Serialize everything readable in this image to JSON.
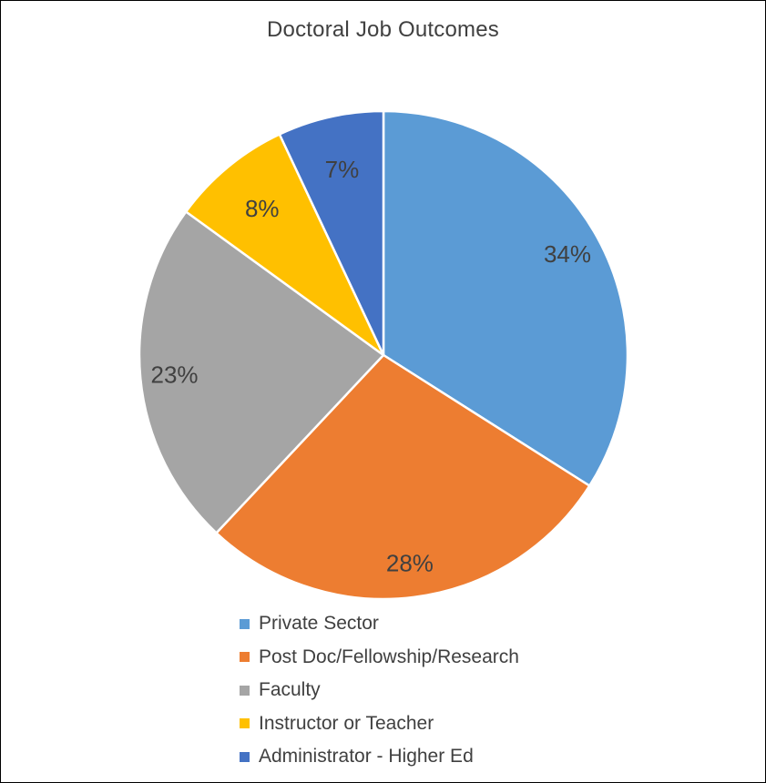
{
  "chart_data": {
    "type": "pie",
    "title": "Doctoral Job Outcomes",
    "categories": [
      "Private Sector",
      "Post Doc/Fellowship/Research",
      "Faculty",
      "Instructor or Teacher",
      "Administrator - Higher Ed"
    ],
    "values": [
      34,
      28,
      23,
      8,
      7
    ],
    "data_labels": [
      "34%",
      "28%",
      "23%",
      "8%",
      "7%"
    ],
    "colors": [
      "#5B9BD5",
      "#ED7D31",
      "#A5A5A5",
      "#FFC000",
      "#4472C4"
    ],
    "legend_position": "bottom"
  }
}
